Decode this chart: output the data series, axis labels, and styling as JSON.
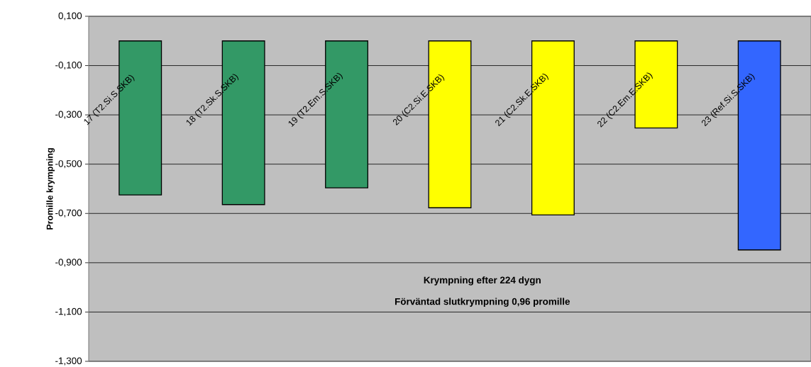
{
  "chart_data": {
    "type": "bar",
    "ylabel": "Promille krympning",
    "annotations": [
      "Krympning efter 224 dygn",
      "Förväntad slutkrympning 0,96 promille"
    ],
    "categories": [
      "17 (T2.Si.S.SKB)",
      "18 (T2.Sk.S.SKB)",
      "19 (T2.Em.S.SKB)",
      "20 (C2.Si.E.SKB)",
      "21 (C2.Sk.E.SKB)",
      "22 (C2.Em.E.SKB)",
      "23 (Ref.Si.S.SKB)"
    ],
    "values": [
      -0.625,
      -0.664,
      -0.596,
      -0.677,
      -0.706,
      -0.353,
      -0.848
    ],
    "colors": [
      "#339966",
      "#339966",
      "#339966",
      "#ffff00",
      "#ffff00",
      "#ffff00",
      "#3366ff"
    ],
    "ylim": [
      -1.3,
      0.1
    ],
    "yticks": [
      {
        "value": 0.1,
        "label": "0,100"
      },
      {
        "value": -0.1,
        "label": "-0,100"
      },
      {
        "value": -0.3,
        "label": "-0,300"
      },
      {
        "value": -0.5,
        "label": "-0,500"
      },
      {
        "value": -0.7,
        "label": "-0,700"
      },
      {
        "value": -0.9,
        "label": "-0,900"
      },
      {
        "value": -1.1,
        "label": "-1,100"
      },
      {
        "value": -1.3,
        "label": "-1,300"
      }
    ],
    "grid": "y"
  }
}
